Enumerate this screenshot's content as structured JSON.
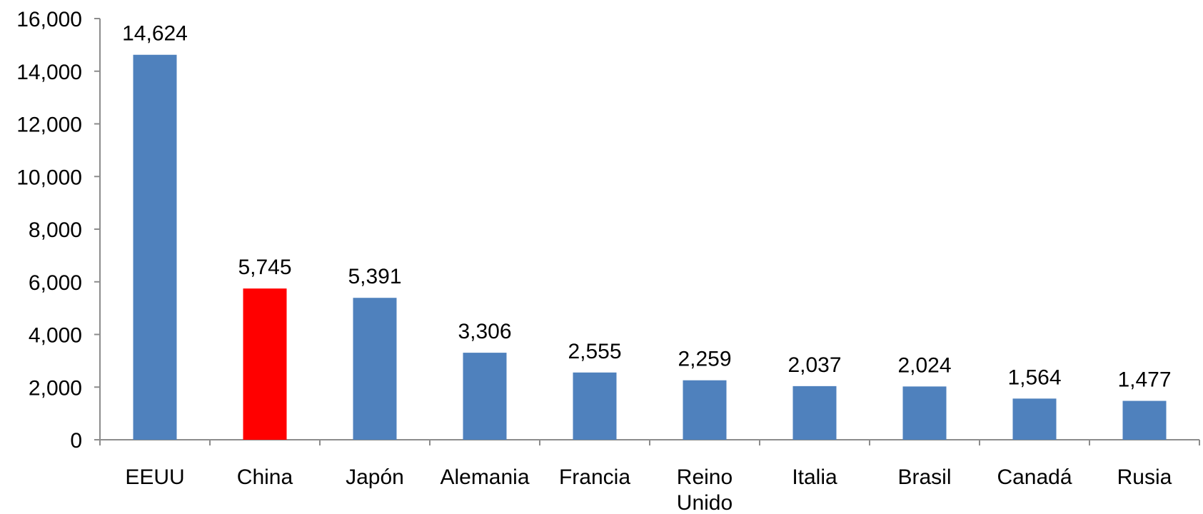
{
  "chart_data": {
    "type": "bar",
    "title": "",
    "xlabel": "",
    "ylabel": "",
    "categories": [
      [
        "EEUU"
      ],
      [
        "China"
      ],
      [
        "Japón"
      ],
      [
        "Alemania"
      ],
      [
        "Francia"
      ],
      [
        "Reino",
        "Unido"
      ],
      [
        "Italia"
      ],
      [
        "Brasil"
      ],
      [
        "Canadá"
      ],
      [
        "Rusia"
      ]
    ],
    "values": [
      14624,
      5745,
      5391,
      3306,
      2555,
      2259,
      2037,
      2024,
      1564,
      1477
    ],
    "value_labels": [
      "14,624",
      "5,745",
      "5,391",
      "3,306",
      "2,555",
      "2,259",
      "2,037",
      "2,024",
      "1,564",
      "1,477"
    ],
    "ylim": [
      0,
      16000
    ],
    "yticks": [
      0,
      2000,
      4000,
      6000,
      8000,
      10000,
      12000,
      14000,
      16000
    ],
    "ytick_labels": [
      "0",
      "2,000",
      "4,000",
      "6,000",
      "8,000",
      "10,000",
      "12,000",
      "14,000",
      "16,000"
    ],
    "grid": false,
    "legend": "none",
    "colors": {
      "default_bar": "#4f81bd",
      "highlight_bar": "#ff0000",
      "highlight_category": "China",
      "axis": "#8c8c8c",
      "text": "#000000"
    }
  }
}
